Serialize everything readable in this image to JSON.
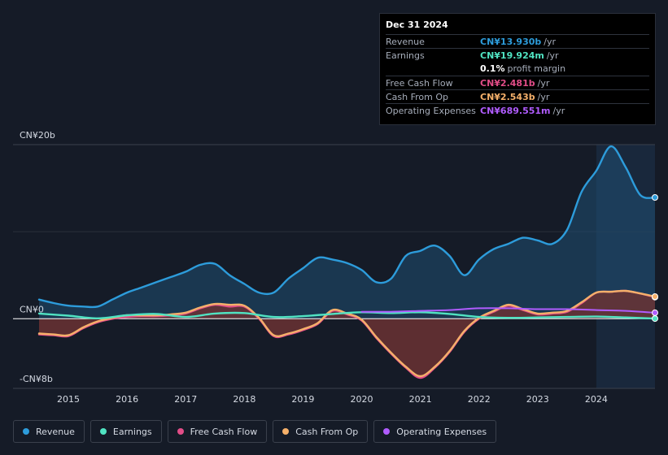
{
  "tooltip": {
    "date": "Dec 31 2024",
    "rows": [
      {
        "label": "Revenue",
        "value": "CN¥13.930b",
        "unit": "/yr",
        "color": "#2d9cdb"
      },
      {
        "label": "Earnings",
        "value": "CN¥19.924m",
        "unit": "/yr",
        "color": "#50e3c2"
      },
      {
        "label": "",
        "value": "0.1%",
        "unit": "profit margin",
        "color": "#ffffff"
      },
      {
        "label": "Free Cash Flow",
        "value": "CN¥2.481b",
        "unit": "/yr",
        "color": "#e24d88"
      },
      {
        "label": "Cash From Op",
        "value": "CN¥2.543b",
        "unit": "/yr",
        "color": "#f5b06a"
      },
      {
        "label": "Operating Expenses",
        "value": "CN¥689.551m",
        "unit": "/yr",
        "color": "#b05cff"
      }
    ]
  },
  "chart_data": {
    "type": "line",
    "title": "",
    "xlabel": "",
    "ylabel": "CN¥",
    "y_axis_labels": [
      "CN¥20b",
      "CN¥0",
      "-CN¥8b"
    ],
    "ylim": [
      -8,
      20
    ],
    "xlim": [
      2014.5,
      2025.0
    ],
    "x_ticks": [
      "2015",
      "2016",
      "2017",
      "2018",
      "2019",
      "2020",
      "2021",
      "2022",
      "2023",
      "2024"
    ],
    "forecast_shade_start": 2024.0,
    "series": [
      {
        "name": "Revenue",
        "color": "#2d9cdb",
        "x": [
          2014.5,
          2014.75,
          2015.0,
          2015.25,
          2015.5,
          2015.75,
          2016.0,
          2016.25,
          2016.5,
          2016.75,
          2017.0,
          2017.25,
          2017.5,
          2017.75,
          2018.0,
          2018.25,
          2018.5,
          2018.75,
          2019.0,
          2019.25,
          2019.5,
          2019.75,
          2020.0,
          2020.25,
          2020.5,
          2020.75,
          2021.0,
          2021.25,
          2021.5,
          2021.75,
          2022.0,
          2022.25,
          2022.5,
          2022.75,
          2023.0,
          2023.25,
          2023.5,
          2023.75,
          2024.0,
          2024.25,
          2024.5,
          2024.75,
          2025.0
        ],
        "values": [
          2.2,
          1.8,
          1.5,
          1.4,
          1.4,
          2.2,
          3.0,
          3.6,
          4.2,
          4.8,
          5.4,
          6.2,
          6.3,
          5.0,
          4.0,
          3.0,
          3.0,
          4.6,
          5.8,
          7.0,
          6.8,
          6.4,
          5.6,
          4.2,
          4.6,
          7.2,
          7.8,
          8.4,
          7.2,
          5.0,
          6.8,
          8.0,
          8.6,
          9.3,
          9.0,
          8.6,
          10.2,
          14.6,
          17.0,
          19.8,
          17.4,
          14.2,
          13.93
        ]
      },
      {
        "name": "Earnings",
        "color": "#50e3c2",
        "x": [
          2014.5,
          2015.0,
          2015.5,
          2016.0,
          2016.5,
          2017.0,
          2017.5,
          2018.0,
          2018.5,
          2019.0,
          2019.5,
          2020.0,
          2020.5,
          2021.0,
          2021.5,
          2022.0,
          2022.5,
          2023.0,
          2023.5,
          2024.0,
          2024.5,
          2025.0
        ],
        "values": [
          0.6,
          0.35,
          0.05,
          0.4,
          0.55,
          0.2,
          0.6,
          0.65,
          0.2,
          0.3,
          0.55,
          0.75,
          0.65,
          0.75,
          0.55,
          0.2,
          0.1,
          0.15,
          0.2,
          0.25,
          0.15,
          0.02
        ]
      },
      {
        "name": "Free Cash Flow",
        "color": "#e24d88",
        "x": [
          2014.5,
          2014.75,
          2015.0,
          2015.25,
          2015.5,
          2015.75,
          2016.0,
          2016.25,
          2016.5,
          2016.75,
          2017.0,
          2017.25,
          2017.5,
          2017.75,
          2018.0,
          2018.25,
          2018.5,
          2018.75,
          2019.0,
          2019.25,
          2019.5,
          2019.75,
          2020.0,
          2020.25,
          2020.5,
          2020.75,
          2021.0,
          2021.25,
          2021.5,
          2021.75,
          2022.0,
          2022.25,
          2022.5,
          2022.75,
          2023.0,
          2023.25,
          2023.5,
          2023.75,
          2024.0,
          2024.25,
          2024.5,
          2024.75,
          2025.0
        ],
        "values": [
          -1.8,
          -1.9,
          -2.0,
          -1.1,
          -0.4,
          0.0,
          0.2,
          0.3,
          0.3,
          0.4,
          0.6,
          1.2,
          1.6,
          1.4,
          1.4,
          0.0,
          -2.0,
          -1.8,
          -1.3,
          -0.6,
          0.9,
          0.5,
          -0.2,
          -2.2,
          -4.0,
          -5.6,
          -6.8,
          -5.6,
          -3.8,
          -1.5,
          0.0,
          0.8,
          1.5,
          1.0,
          0.5,
          0.6,
          0.8,
          1.8,
          3.0,
          3.1,
          3.2,
          2.9,
          2.481
        ]
      },
      {
        "name": "Cash From Op",
        "color": "#f5b06a",
        "x": [
          2014.5,
          2014.75,
          2015.0,
          2015.25,
          2015.5,
          2015.75,
          2016.0,
          2016.25,
          2016.5,
          2016.75,
          2017.0,
          2017.25,
          2017.5,
          2017.75,
          2018.0,
          2018.25,
          2018.5,
          2018.75,
          2019.0,
          2019.25,
          2019.5,
          2019.75,
          2020.0,
          2020.25,
          2020.5,
          2020.75,
          2021.0,
          2021.25,
          2021.5,
          2021.75,
          2022.0,
          2022.25,
          2022.5,
          2022.75,
          2023.0,
          2023.25,
          2023.5,
          2023.75,
          2024.0,
          2024.25,
          2024.5,
          2024.75,
          2025.0
        ],
        "values": [
          -1.7,
          -1.8,
          -1.9,
          -1.0,
          -0.3,
          0.1,
          0.4,
          0.4,
          0.4,
          0.5,
          0.7,
          1.3,
          1.7,
          1.6,
          1.5,
          0.1,
          -1.9,
          -1.7,
          -1.2,
          -0.5,
          1.0,
          0.6,
          -0.1,
          -2.1,
          -3.9,
          -5.5,
          -6.6,
          -5.5,
          -3.7,
          -1.4,
          0.1,
          0.9,
          1.6,
          1.1,
          0.6,
          0.7,
          0.9,
          1.9,
          3.0,
          3.1,
          3.2,
          2.9,
          2.543
        ]
      },
      {
        "name": "Operating Expenses",
        "color": "#b05cff",
        "x": [
          2020.0,
          2020.5,
          2021.0,
          2021.5,
          2022.0,
          2022.5,
          2023.0,
          2023.5,
          2024.0,
          2024.5,
          2025.0
        ],
        "values": [
          0.8,
          0.8,
          0.9,
          1.0,
          1.2,
          1.2,
          1.1,
          1.1,
          1.0,
          0.9,
          0.69
        ]
      }
    ]
  },
  "legend": [
    {
      "label": "Revenue",
      "color": "#2d9cdb"
    },
    {
      "label": "Earnings",
      "color": "#50e3c2"
    },
    {
      "label": "Free Cash Flow",
      "color": "#e24d88"
    },
    {
      "label": "Cash From Op",
      "color": "#f5b06a"
    },
    {
      "label": "Operating Expenses",
      "color": "#b05cff"
    }
  ]
}
